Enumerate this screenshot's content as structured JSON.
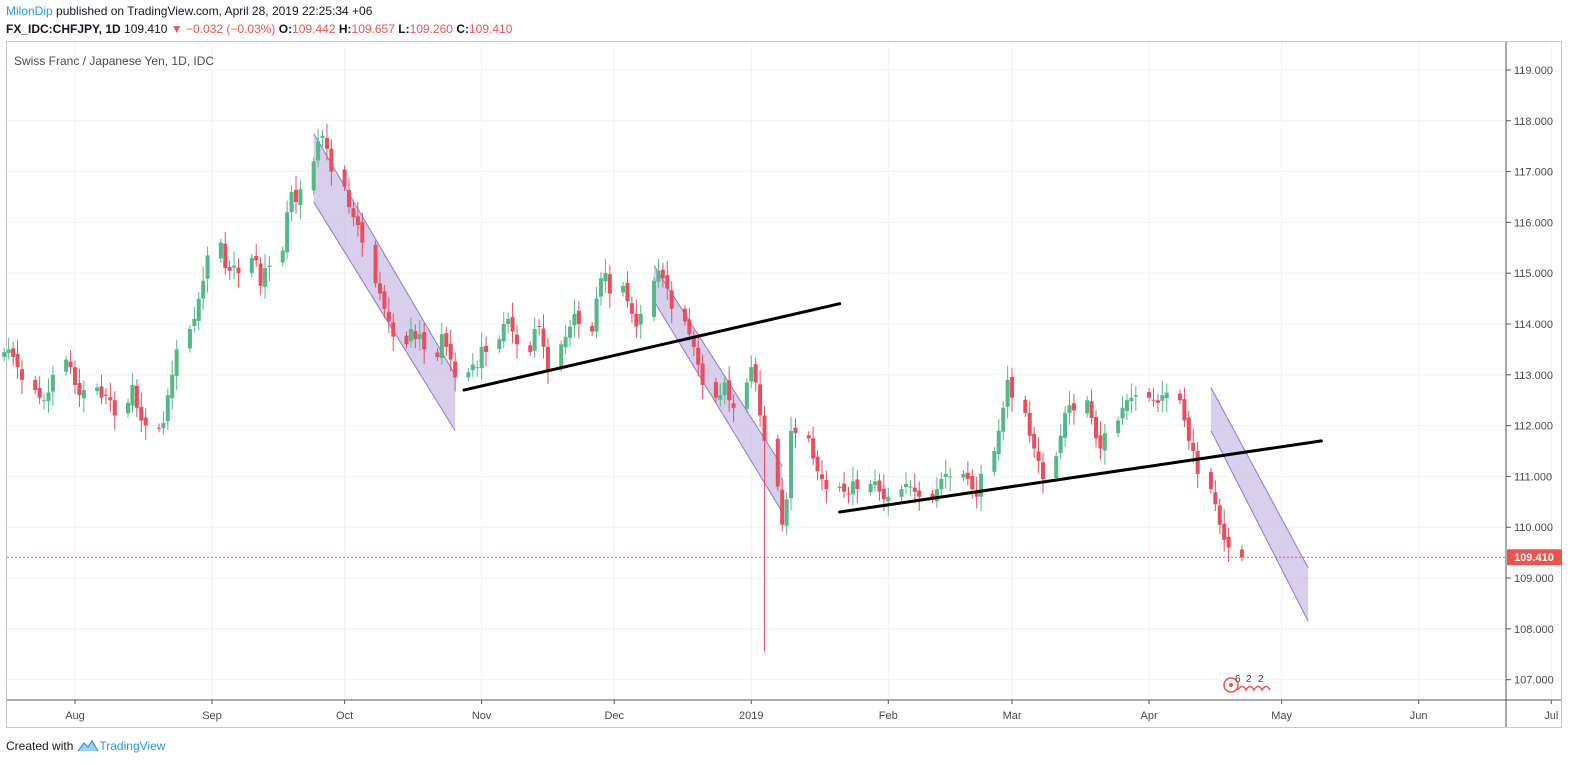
{
  "header": {
    "author": "MilonDip",
    "published_text": "published on TradingView.com, April 28, 2019 22:25:34 +06",
    "symbol": "FX_IDC:CHFJPY, 1D",
    "last": "109.410",
    "change": "−0.032 (−0.03%)",
    "open_label": "O:",
    "open": "109.442",
    "high_label": "H:",
    "high": "109.657",
    "low_label": "L:",
    "low": "109.260",
    "close_label": "C:",
    "close": "109.410"
  },
  "chart_data": {
    "type": "candlestick",
    "title": "Swiss Franc / Japanese Yen, 1D, IDC",
    "ylim": [
      106.6,
      119.55
    ],
    "y_ticks": [
      "119.000",
      "118.000",
      "117.000",
      "116.000",
      "115.000",
      "114.000",
      "113.000",
      "112.000",
      "111.000",
      "110.000",
      "109.000",
      "108.000",
      "107.000"
    ],
    "x_ticks": [
      "Aug",
      "Sep",
      "Oct",
      "Nov",
      "Dec",
      "2019",
      "Feb",
      "Mar",
      "Apr",
      "May",
      "Jun",
      "Jul"
    ],
    "last_price_label": "109.410",
    "last_price": 109.41,
    "colors": {
      "up": "#53b987",
      "down": "#eb4d5c",
      "channel_fill": "#c9bfe6",
      "channel_line": "#9575cd",
      "trendline": "#000000",
      "last_line": "#ef5350"
    },
    "closes": [
      113.45,
      113.5,
      113.35,
      113.15,
      112.9,
      112.7,
      112.55,
      112.5,
      112.65,
      113.0,
      113.3,
      113.15,
      112.8,
      112.6,
      112.7,
      112.75,
      112.55,
      112.6,
      112.5,
      112.2,
      112.45,
      112.8,
      112.35,
      112.1,
      112.0,
      111.95,
      112.05,
      112.6,
      113.0,
      113.5,
      113.9,
      114.1,
      114.5,
      114.85,
      115.35,
      115.6,
      115.1,
      115.05,
      115.15,
      115.0,
      115.3,
      115.25,
      114.75,
      115.1,
      115.15,
      115.45,
      116.2,
      116.6,
      116.4,
      116.65,
      117.2,
      117.6,
      117.7,
      117.45,
      117.0,
      116.7,
      116.3,
      116.1,
      115.95,
      115.6,
      114.8,
      114.6,
      114.3,
      114.05,
      113.75,
      113.6,
      113.9,
      113.7,
      113.8,
      113.5,
      113.35,
      113.8,
      113.55,
      113.3,
      112.95,
      113.05,
      113.2,
      113.15,
      113.55,
      113.45,
      113.7,
      114.0,
      114.1,
      113.85,
      113.6,
      113.45,
      113.9,
      113.95,
      113.55,
      113.1,
      113.6,
      113.75,
      113.95,
      114.2,
      114.0,
      113.85,
      114.5,
      114.9,
      115.0,
      114.6,
      114.75,
      114.45,
      114.2,
      113.95,
      114.2,
      114.85,
      115.05,
      114.9,
      114.7,
      114.3,
      114.05,
      113.8,
      113.55,
      113.2,
      112.8,
      112.55,
      112.6,
      112.85,
      112.5,
      112.35,
      112.85,
      113.15,
      112.85,
      112.2,
      111.7,
      110.8,
      110.05,
      110.55,
      111.9,
      111.85,
      111.75,
      111.35,
      111.1,
      110.95,
      110.75,
      110.8,
      110.7,
      110.65,
      110.9,
      110.75,
      110.85,
      110.9,
      110.7,
      110.55,
      110.6,
      110.75,
      110.85,
      110.8,
      110.7,
      110.6,
      110.55,
      110.75,
      110.95,
      111.05,
      111.0,
      111.05,
      110.95,
      110.75,
      110.6,
      111.05,
      111.5,
      111.9,
      112.35,
      112.9,
      112.55,
      112.25,
      111.8,
      111.55,
      111.3,
      110.95,
      111.4,
      111.8,
      112.25,
      112.4,
      112.3,
      112.5,
      112.15,
      111.75,
      111.55,
      111.85,
      112.1,
      112.35,
      112.5,
      112.55,
      112.6,
      112.55,
      112.5,
      112.45,
      112.6,
      112.65,
      112.5,
      112.1,
      111.7,
      111.5,
      111.05,
      110.75,
      110.45,
      110.05,
      109.75,
      109.6,
      109.41
    ],
    "channels": [
      {
        "start_close_index": 51,
        "x0": "2018-09-24",
        "x1": "2018-10-26",
        "top": [
          117.75,
          113.0
        ],
        "bottom": [
          116.4,
          111.9
        ]
      },
      {
        "start_close_index": 108,
        "x0": "2018-12-10",
        "x1": "2019-01-08",
        "top": [
          115.15,
          111.2
        ],
        "bottom": [
          114.45,
          110.3
        ]
      },
      {
        "start_close_index": 197,
        "x0": "2019-04-15",
        "x1": "2019-05-07",
        "top": [
          112.75,
          109.2
        ],
        "bottom": [
          111.9,
          108.15
        ]
      }
    ],
    "trendlines": [
      {
        "x0": "2018-10-28",
        "y0": 112.7,
        "x1": "2019-01-21",
        "y1": 114.4
      },
      {
        "x0": "2019-01-21",
        "y0": 110.3,
        "x1": "2019-05-10",
        "y1": 111.7
      }
    ]
  },
  "footer": {
    "created_with": "Created with",
    "brand": "TradingView"
  }
}
